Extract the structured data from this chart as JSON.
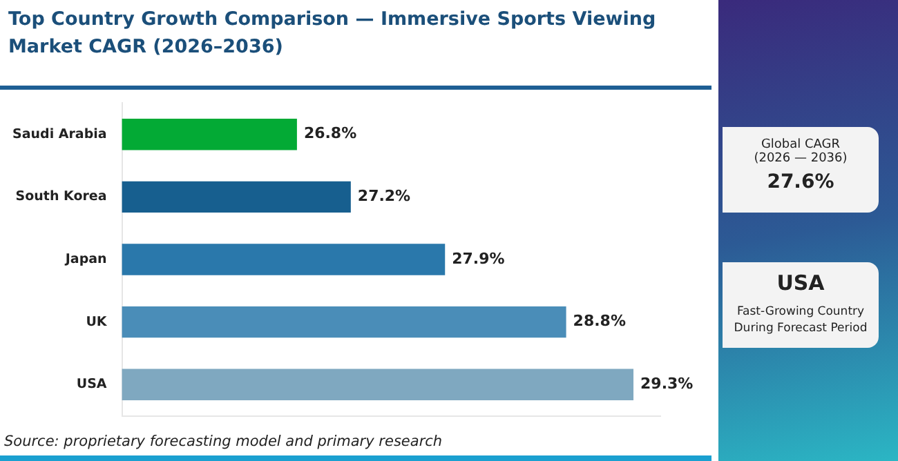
{
  "chart_data": {
    "type": "bar",
    "orientation": "horizontal",
    "title": "Top Country Growth Comparison — Immersive Sports Viewing Market CAGR (2026–2036)",
    "categories": [
      "Saudi Arabia",
      "South Korea",
      "Japan",
      "UK",
      "USA"
    ],
    "values": [
      26.8,
      27.2,
      27.9,
      28.8,
      29.3
    ],
    "value_labels": [
      "26.8%",
      "27.2%",
      "27.9%",
      "28.8%",
      "29.3%"
    ],
    "colors": [
      "#03aa35",
      "#175f8f",
      "#2a78ab",
      "#4a8db8",
      "#7fa8c0"
    ],
    "xlim": [
      25.5,
      29.5
    ],
    "tick_labels": "y",
    "grid": false,
    "legend": false,
    "annotations": [
      "Global CAGR",
      "(2026 — 2036)",
      "27.6%",
      "USA",
      "Fast-Growing Country During Forecast Period",
      "Source: proprietary forecasting model and primary research"
    ]
  }
}
